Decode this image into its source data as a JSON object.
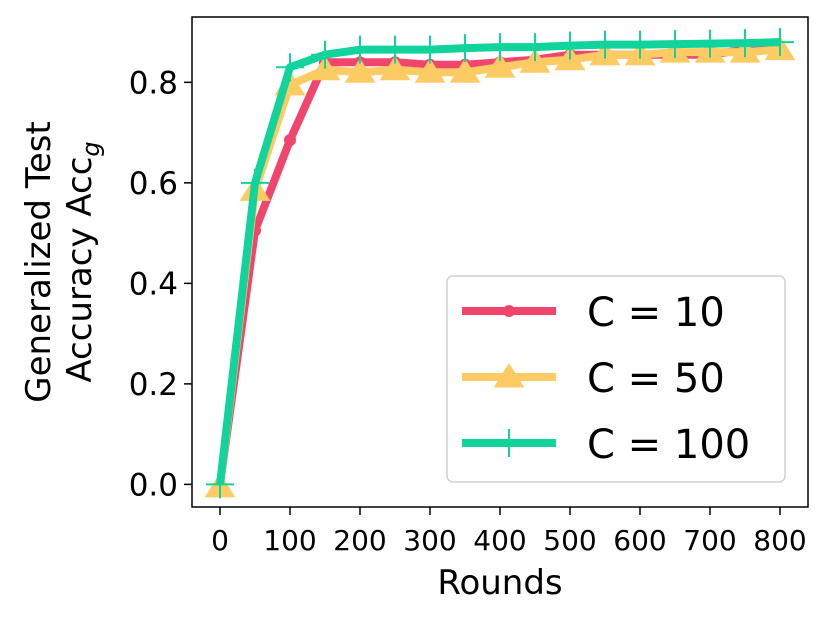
{
  "chart_data": {
    "type": "line",
    "title": "",
    "xlabel": "Rounds",
    "ylabel_line1": "Generalized Test",
    "ylabel_line2": "Accuracy Acc",
    "ylabel_subscript": "g",
    "xlim": [
      -40,
      840
    ],
    "ylim": [
      -0.045,
      0.93
    ],
    "x_ticks": [
      0,
      100,
      200,
      300,
      400,
      500,
      600,
      700,
      800
    ],
    "y_ticks": [
      0.0,
      0.2,
      0.4,
      0.6,
      0.8
    ],
    "y_tick_labels": [
      "0.0",
      "0.2",
      "0.4",
      "0.6",
      "0.8"
    ],
    "grid": false,
    "legend_position": "lower-right",
    "x": [
      0,
      50,
      100,
      150,
      200,
      250,
      300,
      350,
      400,
      450,
      500,
      550,
      600,
      650,
      700,
      750,
      800
    ],
    "series": [
      {
        "name": "C = 10",
        "color": "#f0466e",
        "marker": "circle",
        "values": [
          0.0,
          0.505,
          0.685,
          0.84,
          0.84,
          0.84,
          0.835,
          0.835,
          0.84,
          0.845,
          0.855,
          0.855,
          0.855,
          0.855,
          0.855,
          0.865,
          0.865
        ]
      },
      {
        "name": "C = 50",
        "color": "#fdcb64",
        "marker": "triangle",
        "values": [
          -0.005,
          0.585,
          0.795,
          0.825,
          0.82,
          0.825,
          0.82,
          0.82,
          0.83,
          0.84,
          0.845,
          0.855,
          0.855,
          0.86,
          0.86,
          0.86,
          0.865
        ]
      },
      {
        "name": "C = 100",
        "color": "#11d49c",
        "marker": "plus",
        "values": [
          0.0,
          0.6,
          0.83,
          0.855,
          0.865,
          0.865,
          0.865,
          0.868,
          0.87,
          0.87,
          0.873,
          0.875,
          0.875,
          0.876,
          0.877,
          0.878,
          0.88
        ]
      }
    ]
  }
}
